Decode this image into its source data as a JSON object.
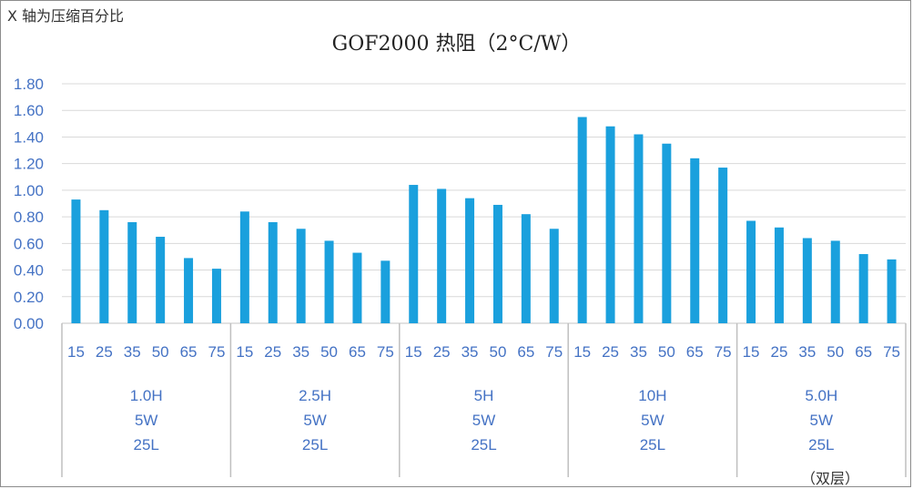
{
  "note": "X 轴为压缩百分比",
  "suffix_note": "（双层）",
  "colors": {
    "bar": "#1aa0dd",
    "grid": "#d9d9d9",
    "axis_text": "#4472c4",
    "label_text": "#4472c4",
    "divider": "#bfbfbf"
  },
  "chart_data": {
    "type": "bar",
    "title": "GOF2000 热阻（2°C/W）",
    "xlabel": "",
    "ylabel": "",
    "ylim": [
      0,
      1.8
    ],
    "yticks": [
      "0.00",
      "0.20",
      "0.40",
      "0.60",
      "0.80",
      "1.00",
      "1.20",
      "1.40",
      "1.60",
      "1.80"
    ],
    "grid": true,
    "legend": "none",
    "groups": [
      {
        "label_lines": [
          "1.0H",
          "5W",
          "25L"
        ],
        "categories": [
          "15",
          "25",
          "35",
          "50",
          "65",
          "75"
        ],
        "values": [
          0.93,
          0.85,
          0.76,
          0.65,
          0.49,
          0.41
        ]
      },
      {
        "label_lines": [
          "2.5H",
          "5W",
          "25L"
        ],
        "categories": [
          "15",
          "25",
          "35",
          "50",
          "65",
          "75"
        ],
        "values": [
          0.84,
          0.76,
          0.71,
          0.62,
          0.53,
          0.47
        ]
      },
      {
        "label_lines": [
          "5H",
          "5W",
          "25L"
        ],
        "categories": [
          "15",
          "25",
          "35",
          "50",
          "65",
          "75"
        ],
        "values": [
          1.04,
          1.01,
          0.94,
          0.89,
          0.82,
          0.71
        ]
      },
      {
        "label_lines": [
          "10H",
          "5W",
          "25L"
        ],
        "categories": [
          "15",
          "25",
          "35",
          "50",
          "65",
          "75"
        ],
        "values": [
          1.55,
          1.48,
          1.42,
          1.35,
          1.24,
          1.17
        ]
      },
      {
        "label_lines": [
          "5.0H",
          "5W",
          "25L"
        ],
        "categories": [
          "15",
          "25",
          "35",
          "50",
          "65",
          "75"
        ],
        "values": [
          0.77,
          0.72,
          0.64,
          0.62,
          0.52,
          0.48
        ]
      }
    ]
  }
}
